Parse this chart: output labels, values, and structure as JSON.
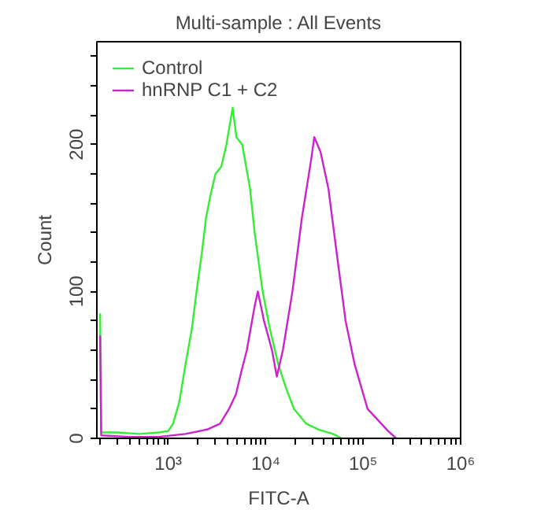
{
  "chart_data": {
    "type": "line",
    "title": "Multi-sample : All Events",
    "xlabel": "FITC-A",
    "ylabel": "Count",
    "log": "x",
    "xlim": [
      185,
      1000000
    ],
    "ylim": [
      0,
      270
    ],
    "xticks": [
      {
        "value": 200,
        "label": null
      },
      {
        "value": 300,
        "label": null
      },
      {
        "value": 400,
        "label": null
      },
      {
        "value": 500,
        "label": null
      },
      {
        "value": 600,
        "label": null
      },
      {
        "value": 700,
        "label": null
      },
      {
        "value": 800,
        "label": null
      },
      {
        "value": 900,
        "label": null
      },
      {
        "value": 1000,
        "label": "10³"
      },
      {
        "value": 2000,
        "label": null
      },
      {
        "value": 3000,
        "label": null
      },
      {
        "value": 4000,
        "label": null
      },
      {
        "value": 5000,
        "label": null
      },
      {
        "value": 6000,
        "label": null
      },
      {
        "value": 7000,
        "label": null
      },
      {
        "value": 8000,
        "label": null
      },
      {
        "value": 9000,
        "label": null
      },
      {
        "value": 10000,
        "label": "10⁴"
      },
      {
        "value": 20000,
        "label": null
      },
      {
        "value": 30000,
        "label": null
      },
      {
        "value": 40000,
        "label": null
      },
      {
        "value": 50000,
        "label": null
      },
      {
        "value": 60000,
        "label": null
      },
      {
        "value": 70000,
        "label": null
      },
      {
        "value": 80000,
        "label": null
      },
      {
        "value": 90000,
        "label": null
      },
      {
        "value": 100000,
        "label": "10⁵"
      },
      {
        "value": 200000,
        "label": null
      },
      {
        "value": 300000,
        "label": null
      },
      {
        "value": 400000,
        "label": null
      },
      {
        "value": 500000,
        "label": null
      },
      {
        "value": 600000,
        "label": null
      },
      {
        "value": 700000,
        "label": null
      },
      {
        "value": 800000,
        "label": null
      },
      {
        "value": 900000,
        "label": null
      },
      {
        "value": 1000000,
        "label": "10⁶"
      }
    ],
    "yticks": [
      0,
      {
        "value": 20,
        "label": null
      },
      {
        "value": 40,
        "label": null
      },
      {
        "value": 60,
        "label": null
      },
      {
        "value": 80,
        "label": null
      },
      100,
      {
        "value": 120,
        "label": null
      },
      {
        "value": 140,
        "label": null
      },
      {
        "value": 160,
        "label": null
      },
      {
        "value": 180,
        "label": null
      },
      200,
      {
        "value": 220,
        "label": null
      },
      {
        "value": 240,
        "label": null
      },
      {
        "value": 260,
        "label": null
      }
    ],
    "grid": false,
    "legend": "top left",
    "marker": "none",
    "line_style": "solid",
    "series": [
      {
        "name": "Control",
        "color": "#33ee33",
        "x": [
          200,
          205,
          300,
          500,
          800,
          1000,
          1120,
          1300,
          1500,
          1750,
          1950,
          2200,
          2440,
          2700,
          3050,
          3500,
          3950,
          4580,
          5000,
          5740,
          6900,
          7700,
          9300,
          11000,
          13500,
          16000,
          19500,
          26000,
          35000,
          49000,
          60000
        ],
        "values": [
          85,
          4,
          4,
          3,
          4,
          5,
          10,
          25,
          50,
          75,
          100,
          125,
          150,
          165,
          180,
          185,
          200,
          225,
          205,
          200,
          170,
          140,
          100,
          75,
          50,
          35,
          20,
          10,
          6,
          3,
          0
        ]
      },
      {
        "name": "hnRNP C1 + C2",
        "color": "#cc22cc",
        "x": [
          200,
          205,
          400,
          800,
          1500,
          2500,
          3400,
          4200,
          4950,
          5600,
          6400,
          7700,
          8300,
          9600,
          11600,
          13000,
          15000,
          18800,
          23500,
          29300,
          31500,
          36500,
          44000,
          55000,
          66000,
          82000,
          111000,
          180000,
          218000
        ],
        "values": [
          70,
          2,
          1,
          1,
          3,
          6,
          10,
          20,
          30,
          45,
          60,
          90,
          100,
          80,
          60,
          42,
          60,
          100,
          150,
          190,
          205,
          195,
          170,
          120,
          80,
          50,
          20,
          5,
          0
        ]
      }
    ]
  }
}
